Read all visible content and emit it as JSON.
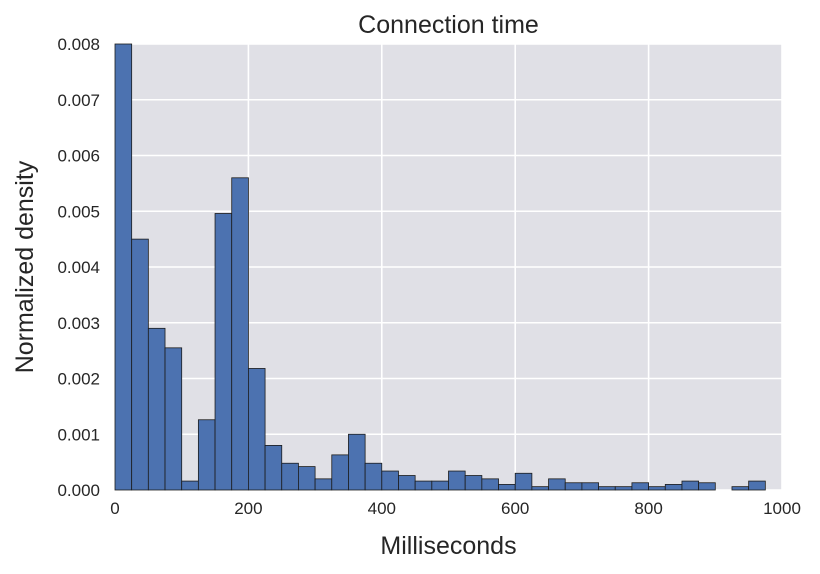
{
  "chart_data": {
    "type": "bar",
    "title": "Connection time",
    "xlabel": "Milliseconds",
    "ylabel": "Normalized density",
    "xlim": [
      0,
      1000
    ],
    "ylim": [
      0,
      0.008
    ],
    "bin_width": 25,
    "x_ticks": [
      "0",
      "200",
      "400",
      "600",
      "800",
      "1000"
    ],
    "y_ticks": [
      "0.000",
      "0.001",
      "0.002",
      "0.003",
      "0.004",
      "0.005",
      "0.006",
      "0.007",
      "0.008"
    ],
    "grid": true,
    "background_color": "#e0e0e6",
    "bar_color": "#4c72b0",
    "bar_edge_color": "#1c1c1c",
    "bins": [
      {
        "x": 0,
        "value": 0.008
      },
      {
        "x": 25,
        "value": 0.0045
      },
      {
        "x": 50,
        "value": 0.0029
      },
      {
        "x": 75,
        "value": 0.00255
      },
      {
        "x": 100,
        "value": 0.00016
      },
      {
        "x": 125,
        "value": 0.00126
      },
      {
        "x": 150,
        "value": 0.00496
      },
      {
        "x": 175,
        "value": 0.0056
      },
      {
        "x": 200,
        "value": 0.00218
      },
      {
        "x": 225,
        "value": 0.0008
      },
      {
        "x": 250,
        "value": 0.00048
      },
      {
        "x": 275,
        "value": 0.00042
      },
      {
        "x": 300,
        "value": 0.0002
      },
      {
        "x": 325,
        "value": 0.00063
      },
      {
        "x": 350,
        "value": 0.001
      },
      {
        "x": 375,
        "value": 0.00048
      },
      {
        "x": 400,
        "value": 0.00034
      },
      {
        "x": 425,
        "value": 0.00026
      },
      {
        "x": 450,
        "value": 0.00016
      },
      {
        "x": 475,
        "value": 0.00016
      },
      {
        "x": 500,
        "value": 0.00034
      },
      {
        "x": 525,
        "value": 0.00026
      },
      {
        "x": 550,
        "value": 0.0002
      },
      {
        "x": 575,
        "value": 0.0001
      },
      {
        "x": 600,
        "value": 0.0003
      },
      {
        "x": 625,
        "value": 6e-05
      },
      {
        "x": 650,
        "value": 0.0002
      },
      {
        "x": 675,
        "value": 0.00013
      },
      {
        "x": 700,
        "value": 0.00013
      },
      {
        "x": 725,
        "value": 6e-05
      },
      {
        "x": 750,
        "value": 6e-05
      },
      {
        "x": 775,
        "value": 0.00013
      },
      {
        "x": 800,
        "value": 6e-05
      },
      {
        "x": 825,
        "value": 0.0001
      },
      {
        "x": 850,
        "value": 0.00016
      },
      {
        "x": 875,
        "value": 0.00013
      },
      {
        "x": 900,
        "value": 0
      },
      {
        "x": 925,
        "value": 6e-05
      },
      {
        "x": 950,
        "value": 0.00016
      }
    ]
  }
}
